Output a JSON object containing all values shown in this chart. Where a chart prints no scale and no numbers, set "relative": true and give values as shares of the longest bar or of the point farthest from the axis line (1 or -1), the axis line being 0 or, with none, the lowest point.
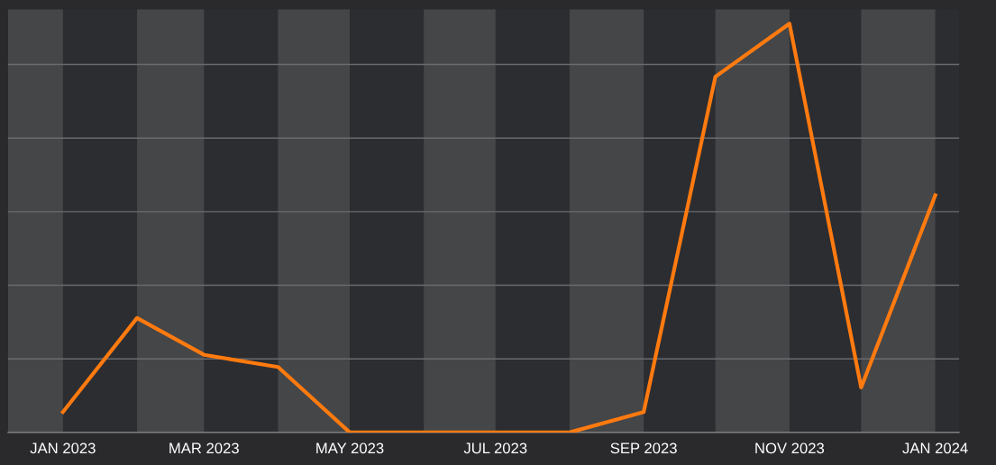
{
  "chart_data": {
    "type": "line",
    "relative": true,
    "x": [
      "2023-01",
      "2023-02",
      "2023-03",
      "2023-04",
      "2023-05",
      "2023-06",
      "2023-07",
      "2023-08",
      "2023-09",
      "2023-10",
      "2023-11",
      "2023-12",
      "2024-01"
    ],
    "series": [
      {
        "color": "#ff7a0f",
        "values": [
          0.05,
          0.28,
          0.19,
          0.16,
          0,
          0,
          0,
          0,
          0.05,
          0.87,
          1,
          0.11,
          0.58
        ]
      }
    ],
    "xlim": [
      "2022-12-09",
      "2024-01-11"
    ],
    "xticks": [
      {
        "value": "2023-01",
        "label": "JAN 2023"
      },
      {
        "value": "2023-03",
        "label": "MAR 2023"
      },
      {
        "value": "2023-05",
        "label": "MAY 2023"
      },
      {
        "value": "2023-07",
        "label": "JUL 2023"
      },
      {
        "value": "2023-09",
        "label": "SEP 2023"
      },
      {
        "value": "2023-11",
        "label": "NOV 2023"
      },
      {
        "value": "2024-01",
        "label": "JAN 2024"
      }
    ],
    "bands": [
      {
        "axis": "x",
        "from": "2022-12-09",
        "to": "2023-01",
        "color": "#454648"
      },
      {
        "axis": "x",
        "from": "2023-02",
        "to": "2023-03",
        "color": "#454648"
      },
      {
        "axis": "x",
        "from": "2023-04",
        "to": "2023-05",
        "color": "#454648"
      },
      {
        "axis": "x",
        "from": "2023-06",
        "to": "2023-07",
        "color": "#454648"
      },
      {
        "axis": "x",
        "from": "2023-08",
        "to": "2023-09",
        "color": "#454648"
      },
      {
        "axis": "x",
        "from": "2023-10",
        "to": "2023-11",
        "color": "#454648"
      },
      {
        "axis": "x",
        "from": "2023-12",
        "to": "2024-01",
        "color": "#454648"
      }
    ],
    "grid": "y",
    "marker": "none",
    "line_style": "solid",
    "tick_labels": "x"
  }
}
